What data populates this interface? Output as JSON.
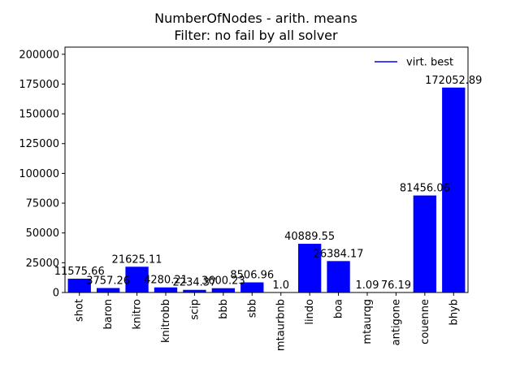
{
  "chart_data": {
    "type": "bar",
    "title": "NumberOfNodes - arith. means",
    "subtitle": "Filter: no fail by all solver",
    "categories": [
      "shot",
      "baron",
      "knitro",
      "knitrobb",
      "scip",
      "bbb",
      "sbb",
      "mtaurbnb",
      "lindo",
      "boa",
      "mtaurqg",
      "antigone",
      "couenne",
      "bhyb"
    ],
    "values": [
      11575.66,
      3757.26,
      21625.11,
      4280.21,
      2234.37,
      3600.23,
      8506.96,
      1.0,
      40889.55,
      26384.17,
      1.09,
      76.19,
      81456.06,
      172052.89
    ],
    "value_labels": [
      "11575.66",
      "3757.26",
      "21625.11",
      "4280.21",
      "2234.37",
      "3600.23",
      "8506.96",
      "1.0",
      "40889.55",
      "26384.17",
      "1.09",
      "76.19",
      "81456.06",
      "172052.89"
    ],
    "yticks": [
      0,
      25000,
      50000,
      75000,
      100000,
      125000,
      150000,
      175000,
      200000
    ],
    "ylim": [
      0,
      206000
    ],
    "xlabel": "",
    "ylabel": "",
    "grid": false,
    "bar_color": "#0000ff",
    "legend": {
      "position": "top-right",
      "entries": [
        {
          "label": "virt. best",
          "color": "#0000ff"
        }
      ]
    }
  }
}
